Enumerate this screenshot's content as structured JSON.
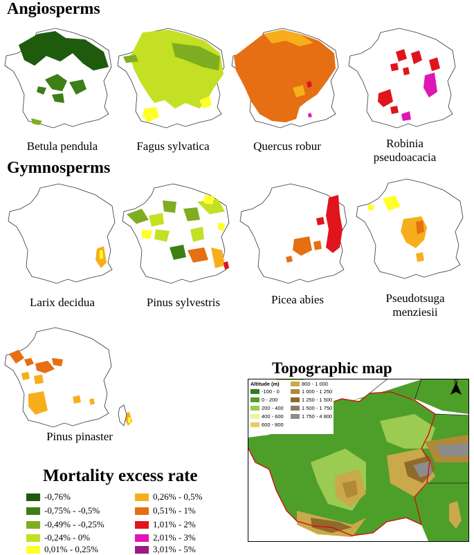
{
  "angiosperms": {
    "title": "Angiosperms",
    "species": [
      {
        "name_line1": "Betula pendula",
        "name_line2": ""
      },
      {
        "name_line1": "Fagus sylvatica",
        "name_line2": ""
      },
      {
        "name_line1": "Quercus robur",
        "name_line2": ""
      },
      {
        "name_line1": "Robinia",
        "name_line2": "pseudoacacia"
      }
    ]
  },
  "gymnosperms": {
    "title": "Gymnosperms",
    "species": [
      {
        "name_line1": "Larix decidua",
        "name_line2": ""
      },
      {
        "name_line1": "Pinus sylvestris",
        "name_line2": ""
      },
      {
        "name_line1": "Picea abies",
        "name_line2": ""
      },
      {
        "name_line1": "Pseudotsuga",
        "name_line2": "menziesii"
      },
      {
        "name_line1": "Pinus pinaster",
        "name_line2": ""
      }
    ]
  },
  "legend": {
    "title": "Mortality excess rate",
    "items": [
      {
        "label": "-0,76%",
        "color": "#1e5b0c"
      },
      {
        "label": "-0,75% - -0,5%",
        "color": "#3d7f16"
      },
      {
        "label": "-0,49% - -0,25%",
        "color": "#7fad22"
      },
      {
        "label": "-0,24% - 0%",
        "color": "#c4e025"
      },
      {
        "label": "0,01% - 0,25%",
        "color": "#ffff2a"
      },
      {
        "label": "0,26% - 0,5%",
        "color": "#f7ae1c"
      },
      {
        "label": "0,51% - 1%",
        "color": "#e56f12"
      },
      {
        "label": "1,01% - 2%",
        "color": "#e0141c"
      },
      {
        "label": "2,01% - 3%",
        "color": "#e016b4"
      },
      {
        "label": "3,01% - 5%",
        "color": "#9a1a8a"
      }
    ]
  },
  "topographic": {
    "title": "Topographic map",
    "legend_heading": "Altitude (m)",
    "north_label": "N",
    "items": [
      {
        "label": "-100 - 0",
        "color": "#2f7d20"
      },
      {
        "label": "0 - 200",
        "color": "#4e9e2a"
      },
      {
        "label": "200 - 400",
        "color": "#9ccb52"
      },
      {
        "label": "400 - 600",
        "color": "#eef29a"
      },
      {
        "label": "600 - 800",
        "color": "#e6cf6a"
      },
      {
        "label": "800 - 1 000",
        "color": "#c9a94a"
      },
      {
        "label": "1 000 - 1 250",
        "color": "#b08a36"
      },
      {
        "label": "1 250 - 1 500",
        "color": "#8f6a2a"
      },
      {
        "label": "1 500 - 1 750",
        "color": "#8a7a6a"
      },
      {
        "label": "1 750 - 4 800",
        "color": "#8c8c8c"
      }
    ]
  }
}
